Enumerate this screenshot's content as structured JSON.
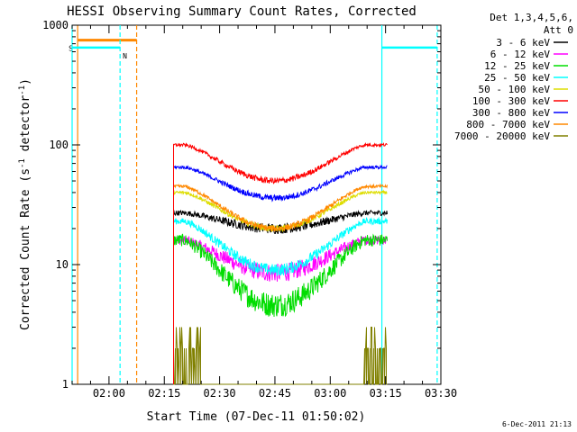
{
  "chart_data": {
    "type": "line",
    "title": "HESSI Observing Summary Count Rates, Corrected",
    "xlabel": "Start Time (07-Dec-11 01:50:02)",
    "ylabel_main": "Corrected Count Rate (s",
    "ylabel_sup1": "-1",
    "ylabel_mid": " detector",
    "ylabel_sup2": "-1",
    "ylabel_end": ")",
    "y_scale": "log",
    "ylim": [
      1,
      1000
    ],
    "y_ticks": [
      1,
      10,
      100,
      1000
    ],
    "y_tick_labels": [
      "1",
      "10",
      "100",
      "1000"
    ],
    "xlim_min": [
      0,
      100
    ],
    "x_ticks_min": [
      10,
      25,
      40,
      55,
      70,
      85,
      100
    ],
    "x_tick_labels": [
      "02:00",
      "02:15",
      "02:30",
      "02:45",
      "03:00",
      "03:15",
      "03:30"
    ],
    "legend_header": [
      "Det 1,3,4,5,6,",
      "Att 0"
    ],
    "legend_position": "outside-right",
    "data_start_min": 27.5,
    "data_end_min": 85.5,
    "series": [
      {
        "name": "3 - 6 keV",
        "color": "#000000",
        "edge": 27,
        "mid": 20,
        "noise": 0.05
      },
      {
        "name": "6 - 12 keV",
        "color": "#ff00ff",
        "edge": 16,
        "mid": 8.5,
        "noise": 0.09
      },
      {
        "name": "12 - 25 keV",
        "color": "#00dd00",
        "edge": 16,
        "mid": 4.6,
        "noise": 0.12
      },
      {
        "name": "25 - 50 keV",
        "color": "#00ffff",
        "edge": 23,
        "mid": 9,
        "noise": 0.06
      },
      {
        "name": "50 - 100 keV",
        "color": "#dddd00",
        "edge": 40,
        "mid": 20,
        "noise": 0.03
      },
      {
        "name": "100 - 300 keV",
        "color": "#ff0000",
        "edge": 100,
        "mid": 50,
        "noise": 0.03
      },
      {
        "name": "300 - 800 keV",
        "color": "#0000ff",
        "edge": 65,
        "mid": 36,
        "noise": 0.03
      },
      {
        "name": "800 - 7000 keV",
        "color": "#ff8800",
        "edge": 45,
        "mid": 20,
        "noise": 0.03
      },
      {
        "name": "7000 - 20000 keV",
        "color": "#808000",
        "edge": 2,
        "mid": 1,
        "noise": 0
      }
    ],
    "events": [
      {
        "type": "saa",
        "label": "S",
        "start": 1.5,
        "end": 17.5,
        "color": "#ff8800",
        "level": 750
      },
      {
        "type": "night",
        "label": "N",
        "start": 0,
        "end": 13,
        "color": "#00ffff",
        "level": 650
      },
      {
        "type": "night",
        "label": "",
        "start": 84,
        "end": 99,
        "color": "#00ffff",
        "level": 650
      }
    ],
    "footer_date": "6-Dec-2011 21:13"
  }
}
